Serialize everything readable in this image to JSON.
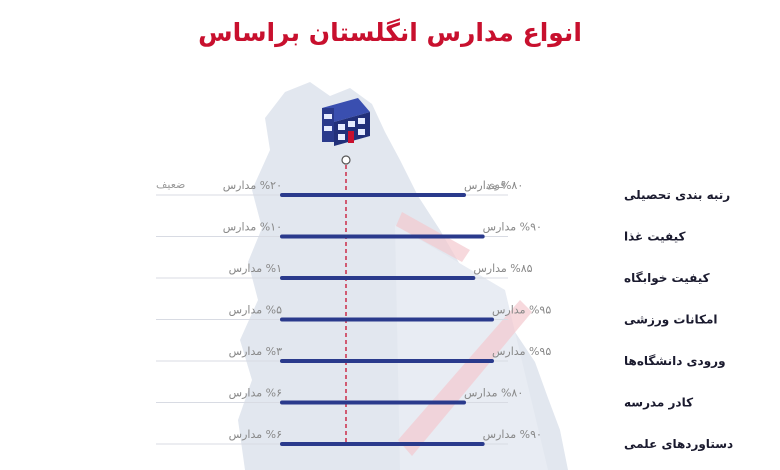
{
  "title": "انواع مدارس انگلستان براساس",
  "scale_labels": {
    "strong": "قوی",
    "weak": "ضعیف"
  },
  "colors": {
    "title": "#c8102e",
    "bar": "#2a3a8c",
    "row_line": "#d8dbe3",
    "marker": "#c8102e",
    "value_text": "#888888",
    "category_text": "#1a1a2e",
    "map_shape": "#dfe4ed"
  },
  "icon": "school-building-icon",
  "chart_data": {
    "type": "bar",
    "title": "انواع مدارس انگلستان براساس",
    "orientation": "horizontal",
    "value_unit": "% of schools",
    "categories": [
      "رتبه بندی تحصیلی",
      "کیفیت غذا",
      "کیفیت خوابگاه",
      "امکانات ورزشی",
      "ورودی دانشگاه‌ها",
      "کادر مدرسه",
      "دستاوردهای علمی"
    ],
    "series": [
      {
        "name": "قوی",
        "values": [
          80,
          90,
          85,
          95,
          95,
          80,
          90
        ]
      },
      {
        "name": "ضعیف",
        "values": [
          20,
          10,
          1,
          5,
          3,
          6,
          6
        ]
      }
    ],
    "value_labels": {
      "strong": [
        "%۸۰ مدارس",
        "%۹۰ مدارس",
        "%۸۵ مدارس",
        "%۹۵ مدارس",
        "%۹۵ مدارس",
        "%۸۰ مدارس",
        "%۹۰ مدارس"
      ],
      "weak": [
        "%۲۰ مدارس",
        "%۱۰ مدارس",
        "%۱ مدارس",
        "%۵ مدارس",
        "%۳ مدارس",
        "%۶ مدارس",
        "%۶ مدارس"
      ]
    }
  }
}
